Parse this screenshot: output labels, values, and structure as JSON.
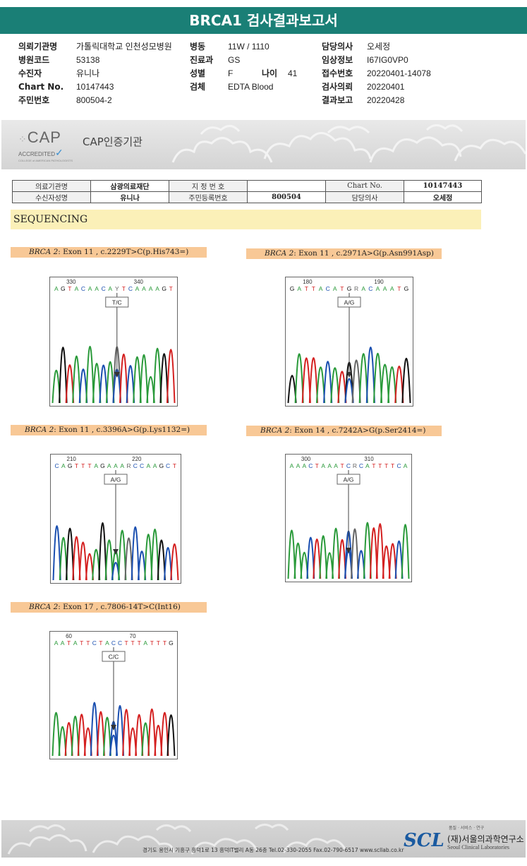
{
  "title": "BRCA1 검사결과보고서",
  "info": {
    "col1": [
      {
        "label": "의뢰기관명",
        "value": "가톨릭대학교 인천성모병원"
      },
      {
        "label": "병원코드",
        "value": "53138"
      },
      {
        "label": "수진자",
        "value": "유니나"
      },
      {
        "label": "Chart No.",
        "value": "10147443"
      },
      {
        "label": "주민번호",
        "value": "800504-2"
      }
    ],
    "col2": [
      {
        "label": "병동",
        "value": "11W / 1110"
      },
      {
        "label": "진료과",
        "value": "GS"
      },
      {
        "label": "성별",
        "value": "F"
      },
      {
        "label": "검체",
        "value": "EDTA Blood"
      }
    ],
    "age_label": "나이",
    "age_value": "41",
    "col3": [
      {
        "label": "담당의사",
        "value": "오세정"
      },
      {
        "label": "임상정보",
        "value": "I67IG0VP0"
      },
      {
        "label": "접수번호",
        "value": "20220401-14078"
      },
      {
        "label": "검사의뢰",
        "value": "20220401"
      },
      {
        "label": "결과보고",
        "value": "20220428"
      }
    ]
  },
  "cap": {
    "logo_text": "CAP",
    "accredited": "ACCREDITED",
    "tiny": "COLLEGE of AMERICAN PATHOLOGISTS",
    "title": "CAP인증기관"
  },
  "header_table": {
    "r1": [
      "의료기관명",
      "삼광의료재단",
      "지 정 번 호",
      "",
      "Chart No.",
      "10147443"
    ],
    "r2": [
      "수신자성명",
      "유니나",
      "주민등록번호",
      "800504",
      "담당의사",
      "오세정"
    ]
  },
  "sequencing_label": "SEQUENCING",
  "variants": [
    {
      "gene": "BRCA 2",
      "rest": ": Exon 11 , c.2229T>C(p.His743=)",
      "seq": "AGTACAACAYTCAAAAGT",
      "num1": "330",
      "num2": "340",
      "call": "T/C"
    },
    {
      "gene": "BRCA 2",
      "rest": ": Exon 11 , c.2971A>G(p.Asn991Asp)",
      "seq": "GATTACATGRACAAATG",
      "num1": "180",
      "num2": "190",
      "call": "A/G"
    },
    {
      "gene": "BRCA 2",
      "rest": ": Exon 11 , c.3396A>G(p.Lys1132=)",
      "seq": "CAGTTTAGAAARCCAAGCT",
      "num1": "210",
      "num2": "220",
      "call": "A/G"
    },
    {
      "gene": "BRCA 2",
      "rest": ": Exon 14 , c.7242A>G(p.Ser2414=)",
      "seq": "AAACTAAATCRCATTTTCA",
      "num1": "300",
      "num2": "310",
      "call": "A/G"
    },
    {
      "gene": "BRCA 2",
      "rest": ": Exon 17 , c.7806-14T>C(Int16)",
      "seq": "AATATTCTACCTTTATTTG",
      "num1": "60",
      "num2": "70",
      "call": "C/C"
    }
  ],
  "colors": {
    "A": "#2a9a3a",
    "C": "#1a4fb0",
    "G": "#111111",
    "T": "#d42020",
    "other": "#666666",
    "header": "#1a7f76"
  },
  "footer": {
    "address": "경기도 용인시 기흥구 흥덕1로 13 흥덕IT밸리 A동 26층  Tel.02-330-2055  Fax.02-790-6517  www.scllab.co.kr",
    "logo": "SCL",
    "tagline": "품질 · 서비스 · 연구",
    "name_kr": "(재)서울의과학연구소",
    "name_en": "Seoul Clinical Laboratories"
  }
}
